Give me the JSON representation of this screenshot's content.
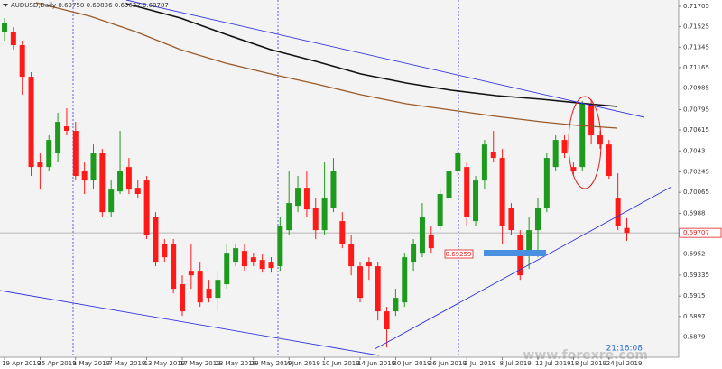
{
  "chart_data": {
    "type": "candlestick",
    "title": "AUDUSD,Daily 0.69750 0.69836 0.69637 0.69707",
    "categories": [
      "19 Apr 2019",
      null,
      null,
      null,
      "25 Apr 2019",
      null,
      null,
      null,
      "1 May 2019",
      null,
      null,
      null,
      "7 May 2019",
      null,
      null,
      null,
      "13 May 2019",
      null,
      null,
      null,
      "17 May 2019",
      null,
      null,
      null,
      "23 May 2019",
      null,
      null,
      null,
      "29 May 2019",
      null,
      null,
      null,
      "4 Jun 2019",
      null,
      null,
      null,
      "10 Jun 2019",
      null,
      null,
      null,
      "14 Jun 2019",
      null,
      null,
      null,
      "20 Jun 2019",
      null,
      null,
      null,
      "26 Jun 2019",
      null,
      null,
      null,
      "2 Jul 2019",
      null,
      null,
      null,
      "8 Jul 2019",
      null,
      null,
      null,
      "12 Jul 2019",
      null,
      null,
      null,
      "18 Jul 2019",
      null,
      null,
      null,
      "24 Jul 2019",
      null,
      null
    ],
    "open": [
      0.71482,
      0.71482,
      0.71363,
      0.71084,
      0.70328,
      0.70288,
      0.70408,
      0.70647,
      0.70607,
      0.70249,
      0.70169,
      0.70408,
      0.6989,
      0.70073,
      0.70288,
      0.70105,
      0.70169,
      0.69851,
      0.69612,
      0.69612,
      0.69254,
      0.69373,
      0.69373,
      0.69214,
      0.69134,
      0.69254,
      0.69453,
      0.69548,
      0.69492,
      0.69468,
      0.69453,
      0.69413,
      0.69731,
      0.69946,
      0.70105,
      0.6993,
      0.69731,
      0.6993,
      0.69811,
      0.69612,
      0.69413,
      0.69453,
      0.69413,
      0.69015,
      0.69015,
      0.69094,
      0.69453,
      0.69532,
      0.69691,
      0.69771,
      0.7001,
      0.70249,
      0.70288,
      0.69811,
      0.70169,
      0.70424,
      0.70368,
      0.6993,
      0.69691,
      0.69532,
      0.69731,
      0.6993,
      0.70288,
      0.70527,
      0.70288,
      0.70288,
      0.70846,
      0.70567,
      0.70487,
      0.7001,
      0.6975
    ],
    "high": [
      0.71602,
      0.71522,
      0.71403,
      0.71124,
      0.70408,
      0.70567,
      0.70766,
      0.70806,
      0.70686,
      0.70328,
      0.70487,
      0.70448,
      0.70169,
      0.70607,
      0.70368,
      0.70169,
      0.70209,
      0.6989,
      0.69652,
      0.69652,
      0.69333,
      0.69612,
      0.69453,
      0.69293,
      0.69373,
      0.69612,
      0.69612,
      0.69612,
      0.69532,
      0.69516,
      0.69492,
      0.69851,
      0.70249,
      0.70209,
      0.70249,
      0.7001,
      0.70328,
      0.70368,
      0.6989,
      0.69691,
      0.69453,
      0.69492,
      0.69453,
      0.69055,
      0.69214,
      0.69532,
      0.69652,
      0.6997,
      0.69771,
      0.70089,
      0.70328,
      0.70448,
      0.70328,
      0.70209,
      0.70527,
      0.70607,
      0.70448,
      0.6997,
      0.69731,
      0.69851,
      0.7001,
      0.70408,
      0.70567,
      0.70567,
      0.70328,
      0.70869,
      0.70885,
      0.70607,
      0.70527,
      0.70233,
      0.69836
    ],
    "low": [
      0.71403,
      0.71323,
      0.70925,
      0.70209,
      0.70089,
      0.70249,
      0.70328,
      0.70567,
      0.70169,
      0.7005,
      0.70089,
      0.69851,
      0.69851,
      0.7005,
      0.7005,
      0.7001,
      0.69652,
      0.69413,
      0.69453,
      0.69174,
      0.68975,
      0.69214,
      0.69055,
      0.69094,
      0.69015,
      0.69214,
      0.69413,
      0.69373,
      0.69413,
      0.69357,
      0.69357,
      0.69373,
      0.69691,
      0.6989,
      0.69851,
      0.69652,
      0.69691,
      0.6989,
      0.69572,
      0.69333,
      0.69094,
      0.69293,
      0.68935,
      0.68696,
      0.68975,
      0.69055,
      0.69373,
      0.69492,
      0.69532,
      0.69731,
      0.6997,
      0.70209,
      0.69771,
      0.69771,
      0.70089,
      0.70328,
      0.69612,
      0.69691,
      0.69293,
      0.69389,
      0.69492,
      0.6989,
      0.70249,
      0.70368,
      0.70209,
      0.70249,
      0.70487,
      0.70448,
      0.70185,
      0.69731,
      0.69637
    ],
    "close": [
      0.71562,
      0.71363,
      0.71084,
      0.70288,
      0.70288,
      0.70527,
      0.70686,
      0.70607,
      0.70209,
      0.70169,
      0.70408,
      0.6989,
      0.70089,
      0.70249,
      0.70089,
      0.7005,
      0.69691,
      0.69453,
      0.69492,
      0.69214,
      0.69015,
      0.69333,
      0.69094,
      0.69134,
      0.69293,
      0.69532,
      0.69572,
      0.69413,
      0.69453,
      0.69389,
      0.69397,
      0.69771,
      0.6997,
      0.70105,
      0.69914,
      0.69731,
      0.7001,
      0.70249,
      0.69612,
      0.69413,
      0.69134,
      0.69413,
      0.69015,
      0.68856,
      0.69134,
      0.69492,
      0.69612,
      0.69851,
      0.69572,
      0.7005,
      0.70249,
      0.70408,
      0.69851,
      0.70169,
      0.70487,
      0.70368,
      0.69771,
      0.69731,
      0.69333,
      0.69731,
      0.6993,
      0.70368,
      0.70527,
      0.70408,
      0.70249,
      0.70846,
      0.70567,
      0.70487,
      0.70209,
      0.69771,
      0.69707
    ],
    "up_color": "#1e9b1e",
    "down_color": "#ff1a1a",
    "ylim": [
      0.6861,
      0.71761
    ],
    "yticks": [
      0.71705,
      0.71525,
      0.71345,
      0.71165,
      0.70985,
      0.70795,
      0.70615,
      0.7043,
      0.70245,
      0.70065,
      0.6988,
      0.6952,
      0.69335,
      0.6915,
      0.6897,
      0.6879
    ],
    "current_price": 0.69707,
    "annotation_label": "0.69259",
    "clock": "21:16:08",
    "watermark": "www.forexre.com"
  }
}
